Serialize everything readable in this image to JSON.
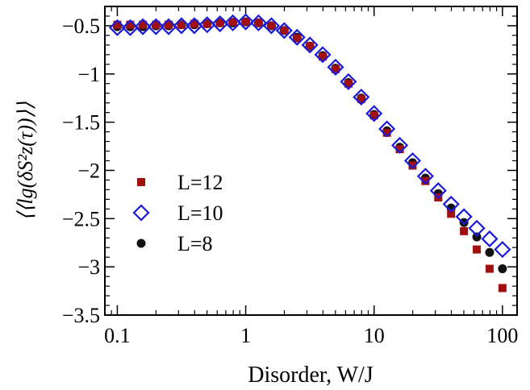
{
  "chart_data": {
    "type": "scatter",
    "title": "",
    "xlabel": "Disorder, W/J",
    "ylabel": "⟨⟨lg(δS²z(τ))⟩⟩",
    "xscale": "log",
    "xlim": [
      0.08,
      130
    ],
    "ylim": [
      -3.5,
      -0.3
    ],
    "xticks": [
      0.1,
      1,
      10,
      100
    ],
    "xtick_labels": [
      "0.1",
      "1",
      "10",
      "100"
    ],
    "yticks": [
      -0.5,
      -1,
      -1.5,
      -2,
      -2.5,
      -3,
      -3.5
    ],
    "ytick_labels": [
      "−0.5",
      "−1",
      "−1.5",
      "−2",
      "−2.5",
      "−3",
      "−3.5"
    ],
    "grid": false,
    "legend": "left",
    "series": [
      {
        "name": "L=12",
        "marker": "square",
        "color": "#a01010",
        "x": [
          0.1,
          0.126,
          0.158,
          0.2,
          0.251,
          0.316,
          0.398,
          0.501,
          0.631,
          0.794,
          1.0,
          1.259,
          1.585,
          1.995,
          2.512,
          3.162,
          3.981,
          5.012,
          6.31,
          7.943,
          10.0,
          12.59,
          15.85,
          19.95,
          25.12,
          31.62,
          39.81,
          50.12,
          63.1,
          79.43,
          100.0
        ],
        "values": [
          -0.49,
          -0.49,
          -0.49,
          -0.49,
          -0.49,
          -0.49,
          -0.48,
          -0.48,
          -0.47,
          -0.46,
          -0.46,
          -0.47,
          -0.5,
          -0.55,
          -0.63,
          -0.71,
          -0.82,
          -0.95,
          -1.1,
          -1.26,
          -1.43,
          -1.61,
          -1.78,
          -1.95,
          -2.11,
          -2.28,
          -2.45,
          -2.63,
          -2.82,
          -3.02,
          -3.22
        ]
      },
      {
        "name": "L=10",
        "marker": "diamond-open",
        "color": "#1a1ad8",
        "x": [
          0.1,
          0.126,
          0.158,
          0.2,
          0.251,
          0.316,
          0.398,
          0.501,
          0.631,
          0.794,
          1.0,
          1.259,
          1.585,
          1.995,
          2.512,
          3.162,
          3.981,
          5.012,
          6.31,
          7.943,
          10.0,
          12.59,
          15.85,
          19.95,
          25.12,
          31.62,
          39.81,
          50.12,
          63.1,
          79.43,
          100.0
        ],
        "values": [
          -0.52,
          -0.52,
          -0.51,
          -0.51,
          -0.51,
          -0.5,
          -0.5,
          -0.49,
          -0.48,
          -0.47,
          -0.46,
          -0.47,
          -0.5,
          -0.55,
          -0.62,
          -0.7,
          -0.8,
          -0.93,
          -1.08,
          -1.24,
          -1.41,
          -1.57,
          -1.74,
          -1.9,
          -2.06,
          -2.21,
          -2.35,
          -2.48,
          -2.6,
          -2.71,
          -2.82
        ]
      },
      {
        "name": "L=8",
        "marker": "circle",
        "color": "#111111",
        "x": [
          0.1,
          0.126,
          0.158,
          0.2,
          0.251,
          0.316,
          0.398,
          0.501,
          0.631,
          0.794,
          1.0,
          1.259,
          1.585,
          1.995,
          2.512,
          3.162,
          3.981,
          5.012,
          6.31,
          7.943,
          10.0,
          12.59,
          15.85,
          19.95,
          25.12,
          31.62,
          39.81,
          50.12,
          63.1,
          79.43,
          100.0
        ],
        "values": [
          -0.51,
          -0.51,
          -0.51,
          -0.5,
          -0.5,
          -0.49,
          -0.49,
          -0.48,
          -0.47,
          -0.47,
          -0.46,
          -0.47,
          -0.5,
          -0.55,
          -0.62,
          -0.71,
          -0.81,
          -0.94,
          -1.09,
          -1.25,
          -1.42,
          -1.59,
          -1.76,
          -1.92,
          -2.08,
          -2.24,
          -2.39,
          -2.54,
          -2.69,
          -2.85,
          -3.02
        ]
      }
    ]
  }
}
